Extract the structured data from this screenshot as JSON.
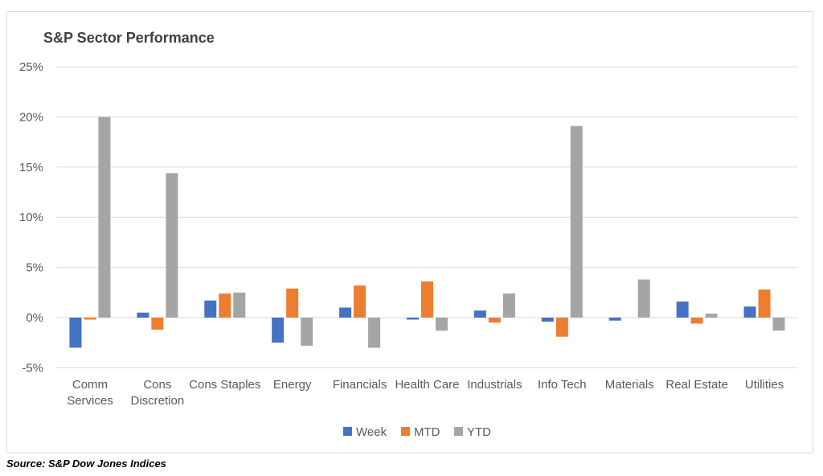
{
  "chart_data": {
    "type": "bar",
    "title": "S&P Sector Performance",
    "categories": [
      [
        "Comm",
        "Services"
      ],
      [
        "Cons",
        "Discretion"
      ],
      [
        "Cons Staples"
      ],
      [
        "Energy"
      ],
      [
        "Financials"
      ],
      [
        "Health Care"
      ],
      [
        "Industrials"
      ],
      [
        "Info Tech"
      ],
      [
        "Materials"
      ],
      [
        "Real Estate"
      ],
      [
        "Utilities"
      ]
    ],
    "series": [
      {
        "name": "Week",
        "color": "#4472C4",
        "values": [
          -3.0,
          0.5,
          1.7,
          -2.5,
          1.0,
          -0.2,
          0.7,
          -0.4,
          -0.3,
          1.6,
          1.1
        ]
      },
      {
        "name": "MTD",
        "color": "#ED7D31",
        "values": [
          -0.2,
          -1.2,
          2.4,
          2.9,
          3.2,
          3.6,
          -0.5,
          -1.9,
          0.0,
          -0.6,
          2.8
        ]
      },
      {
        "name": "YTD",
        "color": "#A5A5A5",
        "values": [
          20.0,
          14.4,
          2.5,
          -2.8,
          -3.0,
          -1.3,
          2.4,
          19.1,
          3.8,
          0.4,
          -1.3
        ]
      }
    ],
    "ylim": [
      -5,
      25
    ],
    "yticks": [
      -5,
      0,
      5,
      10,
      15,
      20,
      25
    ],
    "ytick_labels": [
      "-5%",
      "0%",
      "5%",
      "10%",
      "15%",
      "20%",
      "25%"
    ],
    "grid": true,
    "legend_position": "bottom"
  },
  "source": "Source: S&P Dow Jones Indices"
}
